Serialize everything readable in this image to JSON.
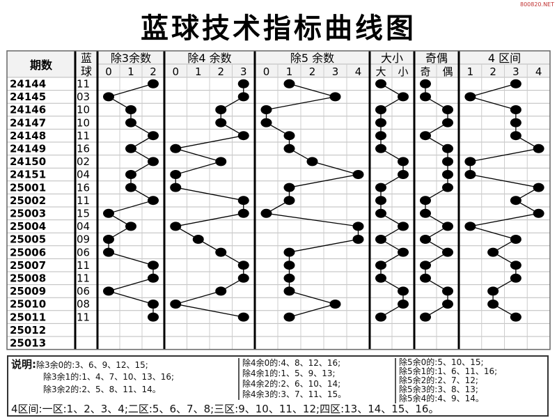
{
  "title": "蓝球技术指标曲线图",
  "watermark": "800820.NET",
  "chart_data": {
    "type": "table",
    "headers": {
      "period": "期数",
      "ball": [
        "蓝",
        "球"
      ]
    },
    "sections": [
      {
        "key": "mod3",
        "label": "除3余数",
        "cols": [
          "0",
          "1",
          "2"
        ]
      },
      {
        "key": "mod4",
        "label": "除4 余数",
        "cols": [
          "0",
          "1",
          "2",
          "3"
        ]
      },
      {
        "key": "mod5",
        "label": "除5 余数",
        "cols": [
          "0",
          "1",
          "2",
          "3",
          "4"
        ]
      },
      {
        "key": "bs",
        "label": "大小",
        "cols": [
          "大",
          "小"
        ]
      },
      {
        "key": "oe",
        "label": "奇偶",
        "cols": [
          "奇",
          "偶"
        ]
      },
      {
        "key": "zone",
        "label": "4 区间",
        "cols": [
          "1",
          "2",
          "3",
          "4"
        ]
      }
    ],
    "rows": [
      {
        "period": "24144",
        "ball": "11"
      },
      {
        "period": "24145",
        "ball": "03"
      },
      {
        "period": "24146",
        "ball": "10"
      },
      {
        "period": "24147",
        "ball": "10"
      },
      {
        "period": "24148",
        "ball": "11"
      },
      {
        "period": "24149",
        "ball": "16"
      },
      {
        "period": "24150",
        "ball": "02"
      },
      {
        "period": "24151",
        "ball": "04"
      },
      {
        "period": "25001",
        "ball": "16"
      },
      {
        "period": "25002",
        "ball": "11"
      },
      {
        "period": "25003",
        "ball": "15"
      },
      {
        "period": "25004",
        "ball": "04"
      },
      {
        "period": "25005",
        "ball": "09"
      },
      {
        "period": "25006",
        "ball": "06"
      },
      {
        "period": "25007",
        "ball": "11"
      },
      {
        "period": "25008",
        "ball": "11"
      },
      {
        "period": "25009",
        "ball": "06"
      },
      {
        "period": "25010",
        "ball": "08"
      },
      {
        "period": "25011",
        "ball": "11"
      },
      {
        "period": "25012",
        "ball": ""
      },
      {
        "period": "25013",
        "ball": ""
      }
    ]
  },
  "legend": {
    "label": "说明:",
    "mod3": [
      "除3余0的:3、6、9、12、15;",
      "除3余1的:1、4、7、10、13、16;",
      "除3余2的:2、5、8、11、14。"
    ],
    "mod4": [
      "除4余0的:4、8、12、16;",
      "除4余1的:1、5、9、13;",
      "除4余2的:2、6、10、14;",
      "除4余3的:3、7、11、15。"
    ],
    "mod5": [
      "除5余0的:5、10、15;",
      "除5余1的:1、6、11、16;",
      "除5余2的:2、7、12;",
      "除5余3的:3、8、13;",
      "除5余4的:4、9、14。"
    ],
    "zones": "4区间:一区:1、2、3、4;二区:5、6、7、8;三区:9、10、11、12;四区:13、14、15、16。"
  }
}
